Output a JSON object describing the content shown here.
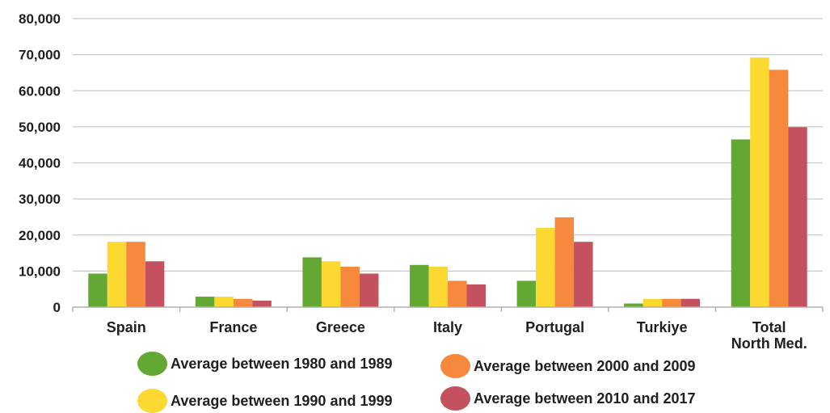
{
  "chart_data": {
    "type": "bar",
    "title": "",
    "xlabel": "",
    "ylabel": "",
    "ylim": [
      0,
      80000
    ],
    "yticks": [
      {
        "value": 0,
        "label": "0"
      },
      {
        "value": 10000,
        "label": "10,000"
      },
      {
        "value": 20000,
        "label": "20,000"
      },
      {
        "value": 30000,
        "label": "30,000"
      },
      {
        "value": 40000,
        "label": "40,000"
      },
      {
        "value": 50000,
        "label": "50,000"
      },
      {
        "value": 60000,
        "label": "60.000"
      },
      {
        "value": 70000,
        "label": "70,000"
      },
      {
        "value": 80000,
        "label": "80,000"
      }
    ],
    "grid": true,
    "legend_position": "bottom",
    "categories": [
      {
        "label_lines": [
          "Spain"
        ]
      },
      {
        "label_lines": [
          "France"
        ]
      },
      {
        "label_lines": [
          "Greece"
        ]
      },
      {
        "label_lines": [
          "Italy"
        ]
      },
      {
        "label_lines": [
          "Portugal"
        ]
      },
      {
        "label_lines": [
          "Turkiye"
        ]
      },
      {
        "label_lines": [
          "Total",
          "North Med."
        ]
      }
    ],
    "series": [
      {
        "name": "Average between 1980 and 1989",
        "color": "#62a832",
        "values": [
          9300,
          2900,
          13800,
          11700,
          7300,
          1000,
          46500
        ]
      },
      {
        "name": "Average between 1990 and 1999",
        "color": "#fcd930",
        "values": [
          18100,
          2900,
          12700,
          11200,
          22000,
          2300,
          69200
        ]
      },
      {
        "name": "Average between 2000 and 2009",
        "color": "#f6893b",
        "values": [
          18100,
          2300,
          11200,
          7300,
          24900,
          2300,
          65800
        ]
      },
      {
        "name": "Average between 2010 and 2017",
        "color": "#c4515e",
        "values": [
          12700,
          1800,
          9300,
          6300,
          18100,
          2300,
          49900
        ]
      }
    ]
  }
}
